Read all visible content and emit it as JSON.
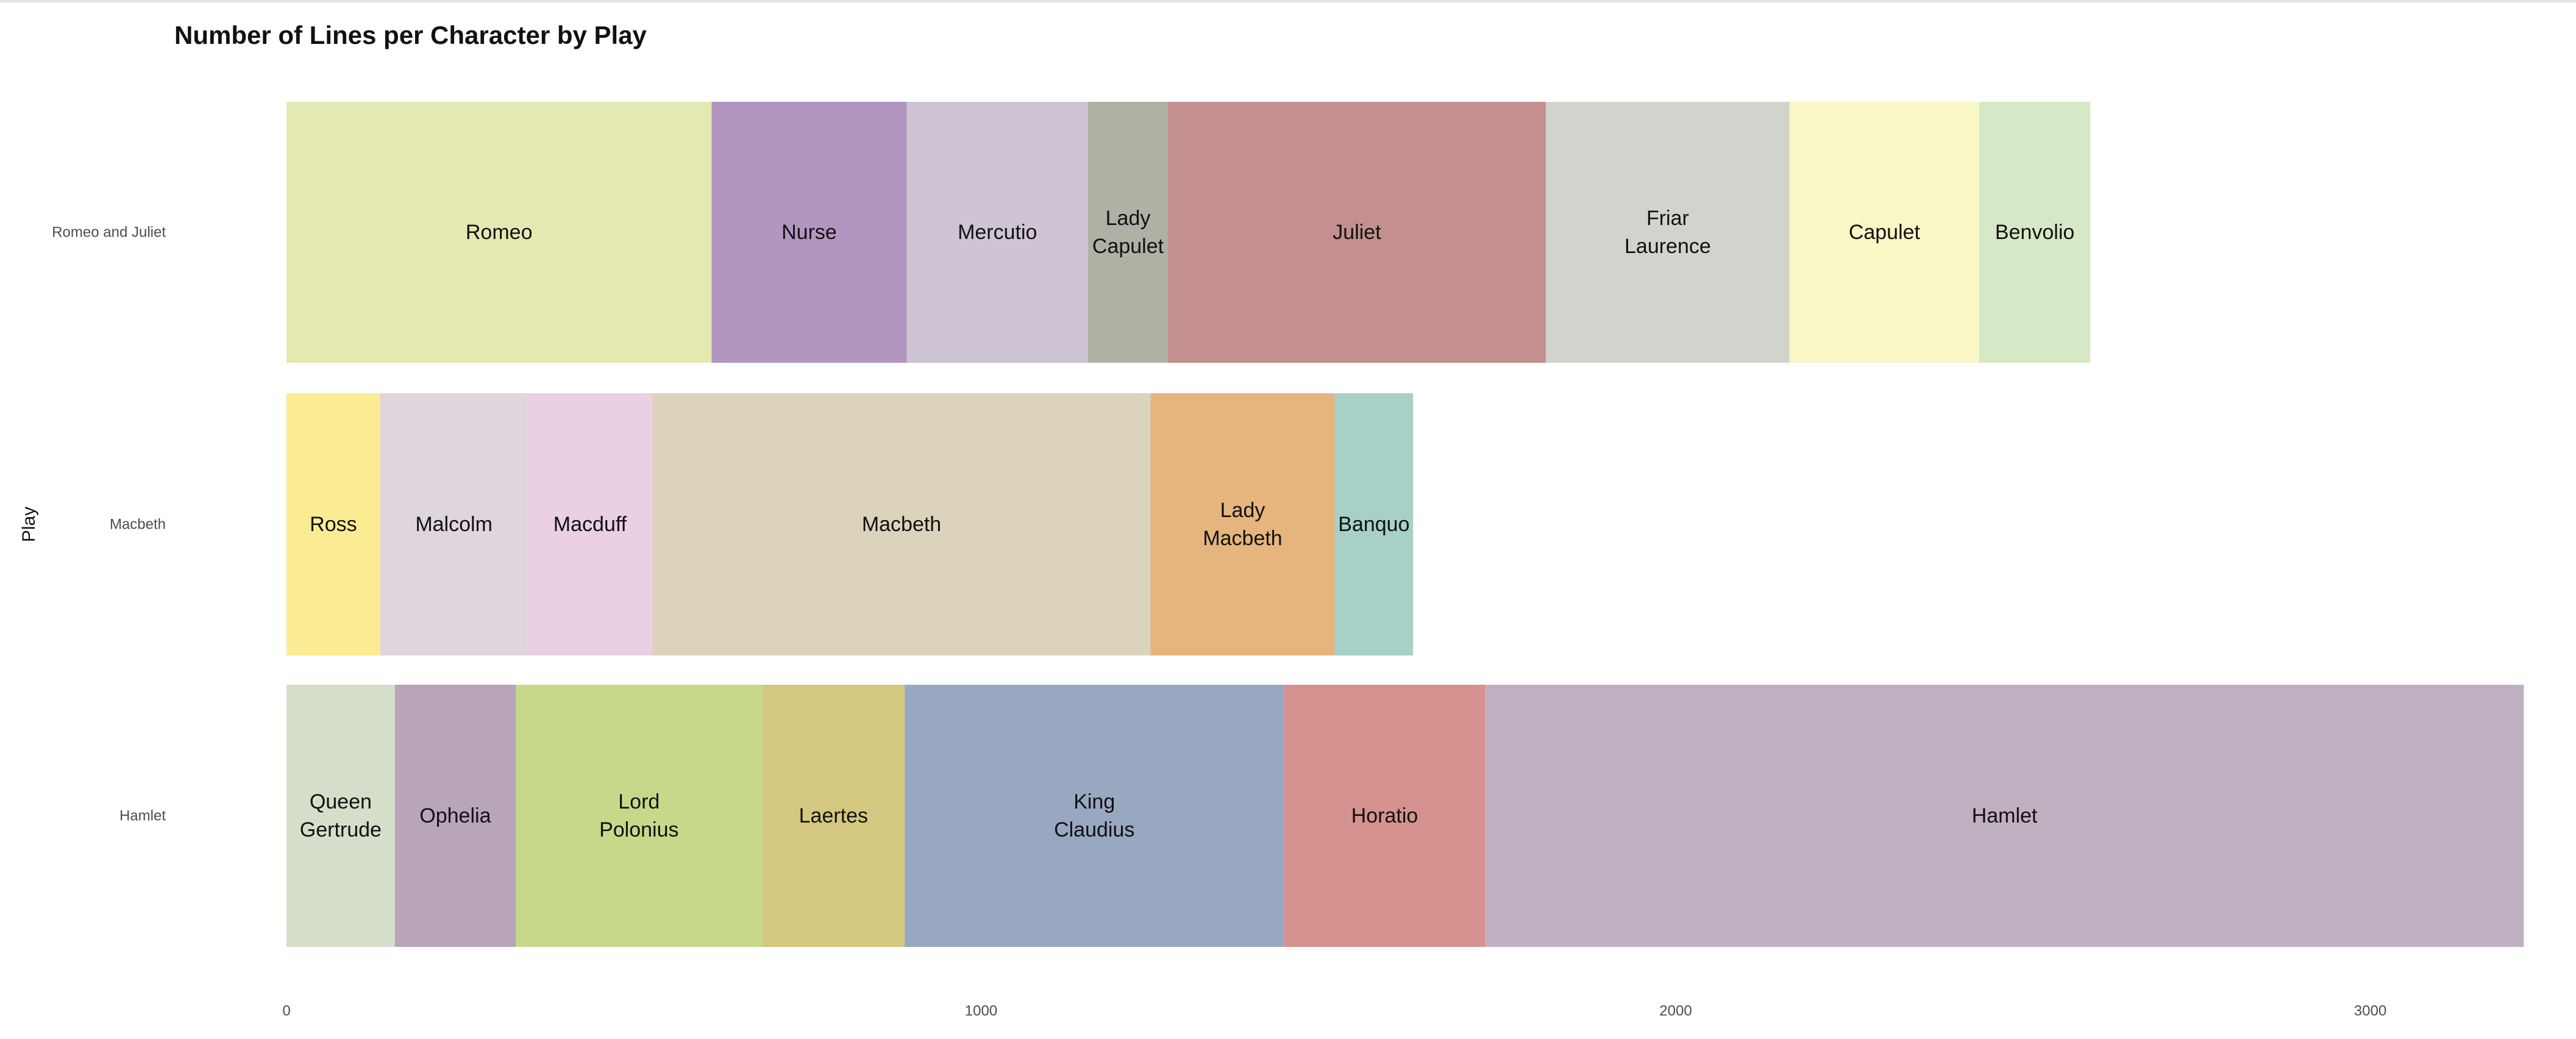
{
  "chart_data": {
    "type": "bar",
    "orientation": "horizontal",
    "stacked": true,
    "title": "Number of Lines per Character by Play",
    "ylabel": "Play",
    "xlabel": "",
    "xlim": [
      0,
      3230
    ],
    "xticks": [
      0,
      1000,
      2000,
      3000
    ],
    "grid": false,
    "legend": "none",
    "plays": [
      {
        "name": "Romeo and Juliet",
        "segments": [
          {
            "label": "Romeo",
            "lines": [
              "Romeo"
            ],
            "value": 612,
            "color": "#e4e9b1"
          },
          {
            "label": "Nurse",
            "lines": [
              "Nurse"
            ],
            "value": 281,
            "color": "#b396c0"
          },
          {
            "label": "Mercutio",
            "lines": [
              "Mercutio"
            ],
            "value": 261,
            "color": "#cfc4d3"
          },
          {
            "label": "Lady Capulet",
            "lines": [
              "Lady",
              "Capulet"
            ],
            "value": 115,
            "color": "#b0b1a5"
          },
          {
            "label": "Juliet",
            "lines": [
              "Juliet"
            ],
            "value": 544,
            "color": "#c3908f"
          },
          {
            "label": "Friar Laurence",
            "lines": [
              "Friar",
              "Laurence"
            ],
            "value": 351,
            "color": "#d3d3ce"
          },
          {
            "label": "Capulet",
            "lines": [
              "Capulet"
            ],
            "value": 273,
            "color": "#f8f7c5"
          },
          {
            "label": "Benvolio",
            "lines": [
              "Benvolio"
            ],
            "value": 160,
            "color": "#d6e8c6"
          }
        ]
      },
      {
        "name": "Macbeth",
        "segments": [
          {
            "label": "Ross",
            "lines": [
              "Ross"
            ],
            "value": 135,
            "color": "#fbec93"
          },
          {
            "label": "Malcolm",
            "lines": [
              "Malcolm"
            ],
            "value": 212,
            "color": "#ded5dd"
          },
          {
            "label": "Macduff",
            "lines": [
              "Macduff"
            ],
            "value": 180,
            "color": "#ebcfe2"
          },
          {
            "label": "Macbeth",
            "lines": [
              "Macbeth"
            ],
            "value": 717,
            "color": "#dbd3bb"
          },
          {
            "label": "Lady Macbeth",
            "lines": [
              "Lady",
              "Macbeth"
            ],
            "value": 265,
            "color": "#e5b57d"
          },
          {
            "label": "Banquo",
            "lines": [
              "Banquo"
            ],
            "value": 113,
            "color": "#a7d0c8"
          }
        ]
      },
      {
        "name": "Hamlet",
        "segments": [
          {
            "label": "Queen Gertrude",
            "lines": [
              "Queen",
              "Gertrude"
            ],
            "value": 156,
            "color": "#d4dec9"
          },
          {
            "label": "Ophelia",
            "lines": [
              "Ophelia"
            ],
            "value": 174,
            "color": "#b8a5ba"
          },
          {
            "label": "Lord Polonius",
            "lines": [
              "Lord",
              "Polonius"
            ],
            "value": 355,
            "color": "#c6d98a"
          },
          {
            "label": "Laertes",
            "lines": [
              "Laertes"
            ],
            "value": 205,
            "color": "#d4c77f"
          },
          {
            "label": "King Claudius",
            "lines": [
              "King",
              "Claudius"
            ],
            "value": 546,
            "color": "#98a8c0"
          },
          {
            "label": "Horatio",
            "lines": [
              "Horatio"
            ],
            "value": 290,
            "color": "#d5928e"
          },
          {
            "label": "Hamlet",
            "lines": [
              "Hamlet"
            ],
            "value": 1495,
            "color": "#c1b0c2"
          }
        ]
      }
    ]
  }
}
